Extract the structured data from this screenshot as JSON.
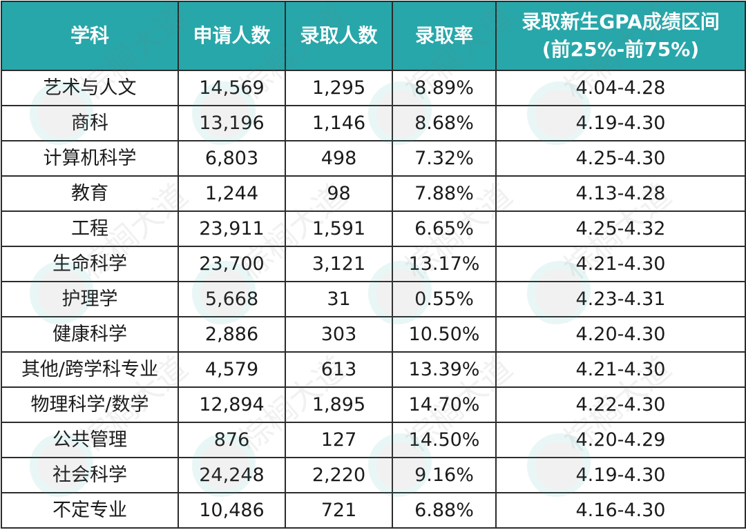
{
  "table": {
    "headers": [
      {
        "label": "学科"
      },
      {
        "label": "申请人数"
      },
      {
        "label": "录取人数"
      },
      {
        "label": "录取率"
      },
      {
        "label": "录取新生GPA成绩区间",
        "sublabel": "(前25%-前75%)"
      }
    ],
    "rows": [
      {
        "subject": "艺术与人文",
        "applicants": "14,569",
        "admitted": "1,295",
        "rate": "8.89%",
        "gpa": "4.04-4.28"
      },
      {
        "subject": "商科",
        "applicants": "13,196",
        "admitted": "1,146",
        "rate": "8.68%",
        "gpa": "4.19-4.30"
      },
      {
        "subject": "计算机科学",
        "applicants": "6,803",
        "admitted": "498",
        "rate": "7.32%",
        "gpa": "4.25-4.30"
      },
      {
        "subject": "教育",
        "applicants": "1,244",
        "admitted": "98",
        "rate": "7.88%",
        "gpa": "4.13-4.28"
      },
      {
        "subject": "工程",
        "applicants": "23,911",
        "admitted": "1,591",
        "rate": "6.65%",
        "gpa": "4.25-4.32"
      },
      {
        "subject": "生命科学",
        "applicants": "23,700",
        "admitted": "3,121",
        "rate": "13.17%",
        "gpa": "4.21-4.30"
      },
      {
        "subject": "护理学",
        "applicants": "5,668",
        "admitted": "31",
        "rate": "0.55%",
        "gpa": "4.23-4.31"
      },
      {
        "subject": "健康科学",
        "applicants": "2,886",
        "admitted": "303",
        "rate": "10.50%",
        "gpa": "4.20-4.30"
      },
      {
        "subject": "其他/跨学科专业",
        "applicants": "4,579",
        "admitted": "613",
        "rate": "13.39%",
        "gpa": "4.21-4.30"
      },
      {
        "subject": "物理科学/数学",
        "applicants": "12,894",
        "admitted": "1,895",
        "rate": "14.70%",
        "gpa": "4.22-4.30"
      },
      {
        "subject": "公共管理",
        "applicants": "876",
        "admitted": "127",
        "rate": "14.50%",
        "gpa": "4.20-4.29"
      },
      {
        "subject": "社会科学",
        "applicants": "24,248",
        "admitted": "2,220",
        "rate": "9.16%",
        "gpa": "4.19-4.30"
      },
      {
        "subject": "不定专业",
        "applicants": "10,486",
        "admitted": "721",
        "rate": "6.88%",
        "gpa": "4.16-4.30"
      }
    ]
  },
  "watermark": {
    "text": "棕榈大道",
    "icon": "palm-avenue-logo-icon"
  },
  "colors": {
    "header_bg": "#28a7aa",
    "header_text": "#ffffff",
    "border": "#2b2b2b",
    "cell_text": "#1a1a1a"
  }
}
